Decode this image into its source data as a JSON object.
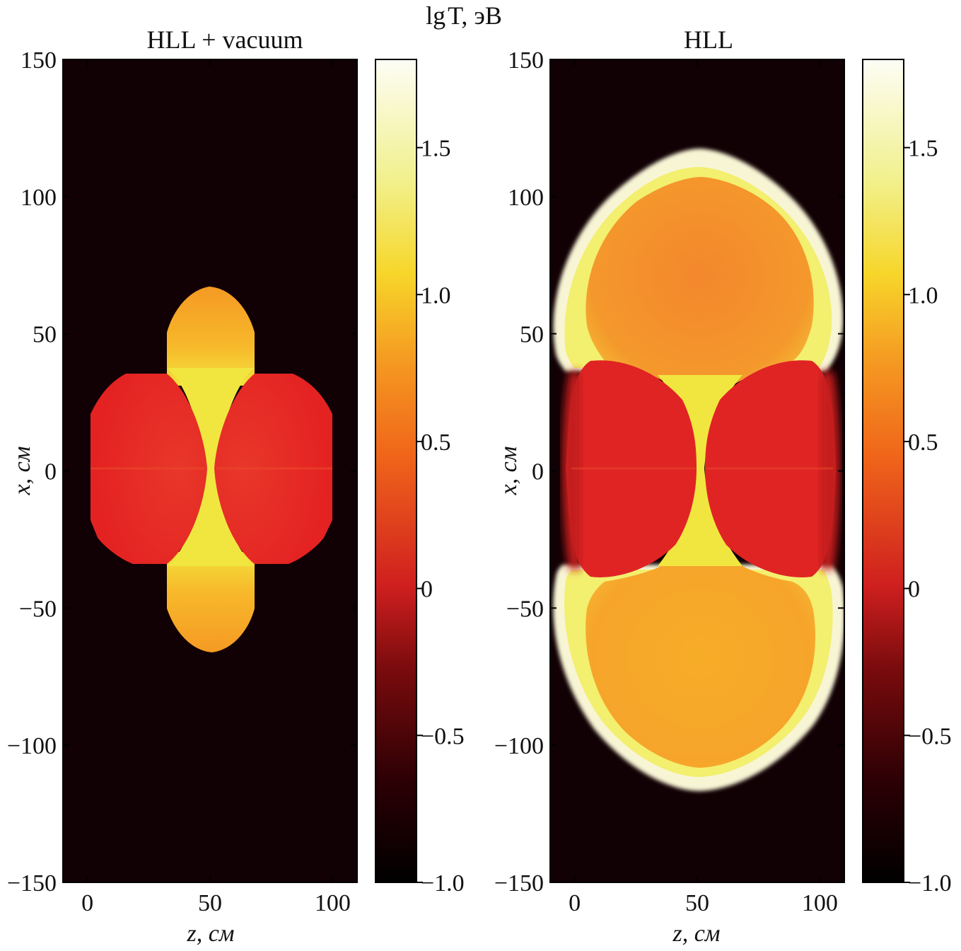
{
  "figure": {
    "colorbar_title": "lg T, эВ"
  },
  "colors": {
    "cmap": [
      "#000000",
      "#2a0004",
      "#7a0b0d",
      "#cf1f1f",
      "#f0661a",
      "#f59d22",
      "#f7d62a",
      "#f1f08a",
      "#fdfdf6"
    ]
  },
  "chart_data": [
    {
      "type": "heatmap",
      "title": "HLL + vacuum",
      "xlabel": "z, см",
      "ylabel": "x, см",
      "xlim": [
        -10,
        110
      ],
      "ylim": [
        -150,
        150
      ],
      "xticks": [
        0,
        50,
        100
      ],
      "yticks": [
        150,
        100,
        50,
        0,
        -50,
        -100,
        -150
      ],
      "ytick_labels": [
        "150",
        "100",
        "50",
        "0",
        "−50",
        "−100",
        "−150"
      ],
      "xtick_labels": [
        "0",
        "50",
        "100"
      ],
      "colorbar": {
        "range": [
          -1.0,
          1.8
        ],
        "ticks": [
          1.5,
          1.0,
          0.5,
          0,
          -0.5,
          -1.0
        ],
        "tick_labels": [
          "1.5",
          "1.0",
          "0.5",
          "0",
          "−0.5",
          "−1.0"
        ]
      },
      "regions": {
        "background": -0.95,
        "side_lobes": 0.05,
        "axial_lobes": 0.8,
        "center_channel": 1.2,
        "lobe_extent_x": [
          -33,
          35
        ],
        "axial_extent_x": [
          -65,
          68
        ]
      }
    },
    {
      "type": "heatmap",
      "title": "HLL",
      "xlabel": "z, см",
      "ylabel": "x, см",
      "xlim": [
        -10,
        110
      ],
      "ylim": [
        -150,
        150
      ],
      "xticks": [
        0,
        50,
        100
      ],
      "yticks": [
        150,
        100,
        50,
        0,
        -50,
        -100,
        -150
      ],
      "ytick_labels": [
        "150",
        "100",
        "50",
        "0",
        "−50",
        "−100",
        "−150"
      ],
      "xtick_labels": [
        "0",
        "50",
        "100"
      ],
      "colorbar": {
        "range": [
          -1.0,
          1.8
        ],
        "ticks": [
          1.5,
          1.0,
          0.5,
          0,
          -0.5,
          -1.0
        ],
        "tick_labels": [
          "1.5",
          "1.0",
          "0.5",
          "0",
          "−0.5",
          "−1.0"
        ]
      },
      "regions": {
        "background": -0.95,
        "side_lobes": 0.0,
        "axial_lobes": 0.7,
        "shell_edge": 1.7,
        "center_channel": 1.2,
        "lobe_extent_x": [
          -40,
          40
        ],
        "axial_extent_x": [
          -115,
          118
        ]
      }
    }
  ]
}
